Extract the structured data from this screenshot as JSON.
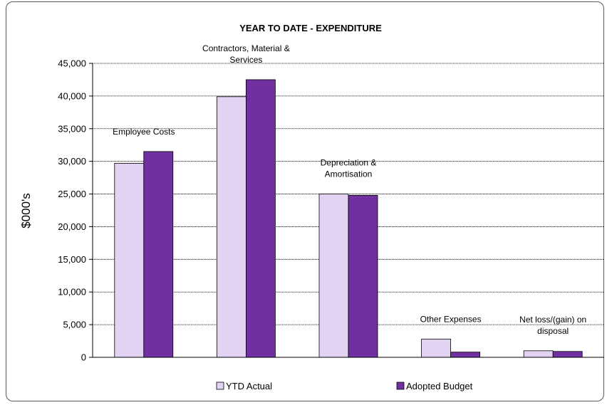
{
  "chart_data": {
    "type": "bar",
    "title": "YEAR TO DATE - EXPENDITURE",
    "ylabel": "$000's",
    "xlabel": "",
    "ylim": [
      0,
      45000
    ],
    "yticks": [
      0,
      5000,
      10000,
      15000,
      20000,
      25000,
      30000,
      35000,
      40000,
      45000
    ],
    "ytick_labels": [
      "0",
      "5,000",
      "10,000",
      "15,000",
      "20,000",
      "25,000",
      "30,000",
      "35,000",
      "40,000",
      "45,000"
    ],
    "grid": "horizontal",
    "legend_position": "bottom",
    "categories": [
      [
        "Employee Costs"
      ],
      [
        "Contractors, Material &",
        "Services"
      ],
      [
        "Depreciation &",
        "Amortisation"
      ],
      [
        "Other Expenses"
      ],
      [
        "Net loss/(gain) on",
        "disposal"
      ]
    ],
    "series": [
      {
        "name": "YTD Actual",
        "color": "#e2d3f3",
        "values": [
          29700,
          39900,
          25000,
          2800,
          1000
        ]
      },
      {
        "name": "Adopted Budget",
        "color": "#7030a0",
        "values": [
          31500,
          42500,
          24800,
          800,
          900
        ]
      }
    ]
  }
}
